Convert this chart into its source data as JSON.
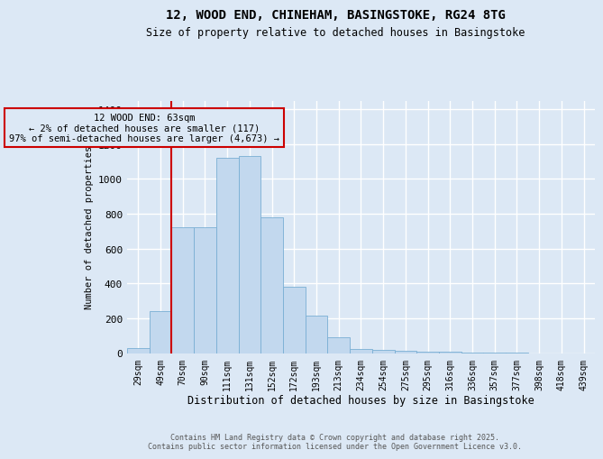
{
  "title1": "12, WOOD END, CHINEHAM, BASINGSTOKE, RG24 8TG",
  "title2": "Size of property relative to detached houses in Basingstoke",
  "xlabel": "Distribution of detached houses by size in Basingstoke",
  "ylabel": "Number of detached properties",
  "categories": [
    "29sqm",
    "49sqm",
    "70sqm",
    "90sqm",
    "111sqm",
    "131sqm",
    "152sqm",
    "172sqm",
    "193sqm",
    "213sqm",
    "234sqm",
    "254sqm",
    "275sqm",
    "295sqm",
    "316sqm",
    "336sqm",
    "357sqm",
    "377sqm",
    "398sqm",
    "418sqm",
    "439sqm"
  ],
  "values": [
    28,
    240,
    720,
    720,
    1120,
    1130,
    780,
    380,
    215,
    90,
    25,
    20,
    12,
    8,
    6,
    5,
    3,
    2,
    0,
    0,
    0
  ],
  "bar_color": "#c2d8ee",
  "bar_edge_color": "#7aafd4",
  "background_color": "#dce8f5",
  "grid_color": "#ffffff",
  "vline_x_index": 1.5,
  "vline_color": "#cc0000",
  "annotation_text": "12 WOOD END: 63sqm\n← 2% of detached houses are smaller (117)\n97% of semi-detached houses are larger (4,673) →",
  "annotation_box_edgecolor": "#cc0000",
  "footer1": "Contains HM Land Registry data © Crown copyright and database right 2025.",
  "footer2": "Contains public sector information licensed under the Open Government Licence v3.0.",
  "ylim": [
    0,
    1450
  ],
  "yticks": [
    0,
    200,
    400,
    600,
    800,
    1000,
    1200,
    1400
  ]
}
